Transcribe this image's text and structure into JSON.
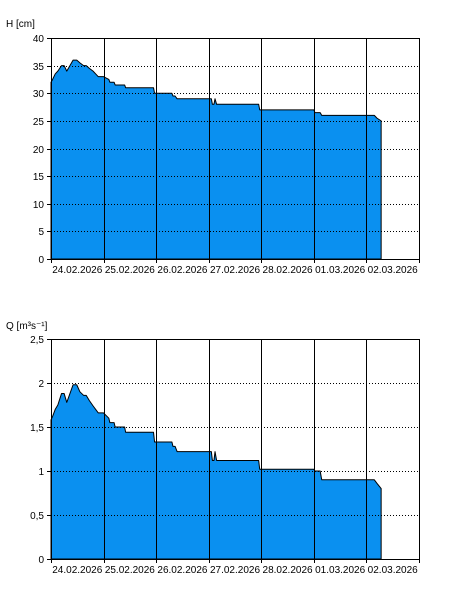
{
  "chart_data": [
    {
      "type": "area",
      "ylabel": "H [cm]",
      "ylim": [
        0,
        40
      ],
      "yticks": [
        0,
        5,
        10,
        15,
        20,
        25,
        30,
        35,
        40
      ],
      "ytick_labels": [
        "0",
        "5",
        "10",
        "15",
        "20",
        "25",
        "30",
        "35",
        "40"
      ],
      "xlim": [
        0,
        7
      ],
      "xtick_labels": [
        "24.02.2026",
        "25.02.2026",
        "26.02.2026",
        "27.02.2026",
        "28.02.2026",
        "01.03.2026",
        "02.03.2026"
      ],
      "color": "#0a90f0",
      "grid": "dotted-horizontal",
      "series": [
        {
          "x": [
            0,
            0.03,
            0.08,
            0.13,
            0.2,
            0.25,
            0.3,
            0.36,
            0.42,
            0.49,
            0.55,
            0.62,
            0.67,
            0.73,
            0.8,
            0.85,
            0.9,
            0.96,
            1.0,
            1.1,
            1.12,
            1.2,
            1.22,
            1.4,
            1.42,
            1.95,
            1.97,
            2.3,
            2.32,
            2.36,
            2.4,
            2.75,
            2.77,
            3.05,
            3.07,
            3.1,
            3.12,
            3.15,
            3.17,
            3.95,
            3.97,
            5.0,
            5.02,
            5.12,
            5.15,
            6.15,
            6.2,
            6.28
          ],
          "y": [
            32,
            32.5,
            33.5,
            34,
            35,
            35,
            34,
            35,
            36,
            36,
            35.5,
            35,
            35,
            34.5,
            34,
            33.5,
            33,
            33,
            33,
            32.5,
            32,
            32,
            31.5,
            31.5,
            31,
            31,
            30,
            30,
            29.5,
            29.5,
            29,
            29,
            29,
            29,
            28,
            28,
            29,
            28,
            28,
            28,
            27,
            27,
            26.5,
            26.5,
            26,
            26,
            25.5,
            25
          ]
        }
      ]
    },
    {
      "type": "area",
      "ylabel": "Q [m³s⁻¹]",
      "ylim": [
        0,
        2.5
      ],
      "yticks": [
        0,
        0.5,
        1,
        1.5,
        2,
        2.5
      ],
      "ytick_labels": [
        "0",
        "0,5",
        "1",
        "1,5",
        "2",
        "2,5"
      ],
      "xlim": [
        0,
        7
      ],
      "xtick_labels": [
        "24.02.2026",
        "25.02.2026",
        "26.02.2026",
        "27.02.2026",
        "28.02.2026",
        "01.03.2026",
        "02.03.2026"
      ],
      "color": "#0a90f0",
      "grid": "dotted-horizontal",
      "series": [
        {
          "x": [
            0,
            0.03,
            0.08,
            0.13,
            0.2,
            0.25,
            0.3,
            0.36,
            0.42,
            0.49,
            0.55,
            0.62,
            0.67,
            0.73,
            0.8,
            0.85,
            0.9,
            0.96,
            1.0,
            1.1,
            1.12,
            1.2,
            1.22,
            1.4,
            1.42,
            1.95,
            1.97,
            2.3,
            2.32,
            2.36,
            2.4,
            2.75,
            2.77,
            3.05,
            3.07,
            3.1,
            3.12,
            3.15,
            3.17,
            3.95,
            3.97,
            5.0,
            5.02,
            5.12,
            5.15,
            6.15,
            6.2,
            6.28
          ],
          "y": [
            1.58,
            1.62,
            1.7,
            1.75,
            1.88,
            1.88,
            1.78,
            1.88,
            1.98,
            1.98,
            1.9,
            1.86,
            1.86,
            1.8,
            1.74,
            1.7,
            1.66,
            1.66,
            1.66,
            1.6,
            1.55,
            1.55,
            1.5,
            1.5,
            1.44,
            1.44,
            1.33,
            1.33,
            1.28,
            1.28,
            1.22,
            1.22,
            1.22,
            1.22,
            1.12,
            1.12,
            1.22,
            1.12,
            1.12,
            1.12,
            1.02,
            1.02,
            1.0,
            1.0,
            0.9,
            0.9,
            0.86,
            0.8
          ]
        }
      ]
    }
  ]
}
